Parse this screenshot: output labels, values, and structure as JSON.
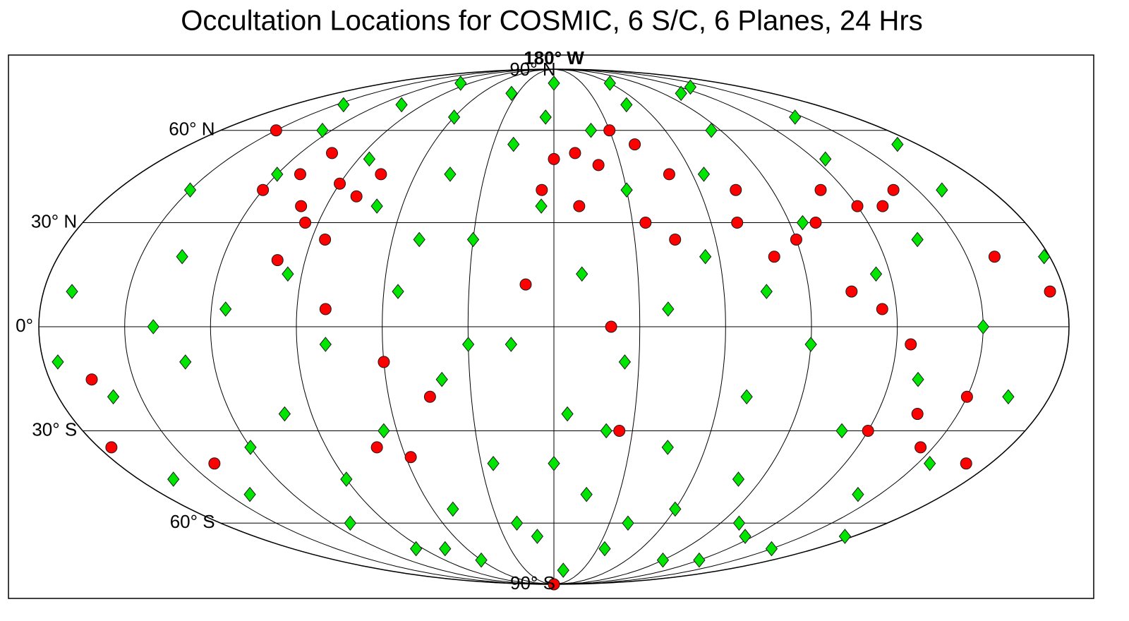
{
  "title": "Occultation Locations for COSMIC, 6 S/C, 6 Planes, 24 Hrs",
  "map": {
    "projection": "mollweide",
    "central_meridian": 0,
    "parallels": [
      {
        "lat": 60,
        "label": "60° N"
      },
      {
        "lat": 30,
        "label": "30° N"
      },
      {
        "lat": 0,
        "label": "0°"
      },
      {
        "lat": -30,
        "label": "30° S"
      },
      {
        "lat": -60,
        "label": "60° S"
      }
    ],
    "meridians": [
      -180,
      -150,
      -120,
      -90,
      -60,
      -30,
      0,
      30,
      60,
      90,
      120,
      150,
      180
    ],
    "poles": [
      {
        "lat": 90,
        "label": "90° N"
      },
      {
        "lat": -90,
        "label": "90° S"
      }
    ],
    "top_label": "180° W",
    "series": [
      {
        "color": "#ff0000",
        "marker": "circle",
        "points": [
          [
            -120,
            40
          ],
          [
            -110,
            45
          ],
          [
            -100,
            35
          ],
          [
            -90,
            42
          ],
          [
            -80,
            38
          ],
          [
            -75,
            45
          ],
          [
            -95,
            30
          ],
          [
            -105,
            52
          ],
          [
            -85,
            25
          ],
          [
            -100,
            19
          ],
          [
            -80,
            5
          ],
          [
            -60,
            -10
          ],
          [
            -45,
            -20
          ],
          [
            -70,
            -35
          ],
          [
            -58,
            -38
          ],
          [
            -150,
            60
          ],
          [
            -165,
            -15
          ],
          [
            -175,
            -35
          ],
          [
            -140,
            -40
          ],
          [
            0,
            50
          ],
          [
            10,
            52
          ],
          [
            20,
            48
          ],
          [
            -5,
            40
          ],
          [
            30,
            60
          ],
          [
            40,
            55
          ],
          [
            50,
            45
          ],
          [
            35,
            30
          ],
          [
            10,
            35
          ],
          [
            -10,
            12
          ],
          [
            20,
            0
          ],
          [
            45,
            25
          ],
          [
            70,
            30
          ],
          [
            80,
            20
          ],
          [
            75,
            40
          ],
          [
            90,
            25
          ],
          [
            100,
            30
          ],
          [
            110,
            40
          ],
          [
            120,
            35
          ],
          [
            105,
            10
          ],
          [
            115,
            5
          ],
          [
            125,
            -5
          ],
          [
            130,
            35
          ],
          [
            140,
            40
          ],
          [
            135,
            -25
          ],
          [
            145,
            -35
          ],
          [
            120,
            -30
          ],
          [
            150,
            -20
          ],
          [
            170,
            -40
          ],
          [
            175,
            10
          ],
          [
            160,
            20
          ],
          [
            25,
            -30
          ],
          [
            0,
            -90
          ]
        ]
      },
      {
        "color": "#00e600",
        "marker": "diamond",
        "points": [
          [
            -170,
            10
          ],
          [
            -160,
            -20
          ],
          [
            -150,
            40
          ],
          [
            -140,
            -50
          ],
          [
            -135,
            20
          ],
          [
            -130,
            -10
          ],
          [
            -125,
            60
          ],
          [
            -120,
            -35
          ],
          [
            -115,
            5
          ],
          [
            -110,
            -60
          ],
          [
            -105,
            70
          ],
          [
            -100,
            -25
          ],
          [
            -95,
            15
          ],
          [
            -90,
            -45
          ],
          [
            -85,
            50
          ],
          [
            -80,
            -5
          ],
          [
            -75,
            -70
          ],
          [
            -70,
            35
          ],
          [
            -65,
            -30
          ],
          [
            -60,
            65
          ],
          [
            -55,
            10
          ],
          [
            -50,
            -55
          ],
          [
            -45,
            45
          ],
          [
            -40,
            -15
          ],
          [
            -35,
            75
          ],
          [
            -30,
            25
          ],
          [
            -25,
            -40
          ],
          [
            -20,
            55
          ],
          [
            -15,
            -5
          ],
          [
            -10,
            -65
          ],
          [
            -5,
            35
          ],
          [
            0,
            80
          ],
          [
            5,
            -25
          ],
          [
            10,
            15
          ],
          [
            15,
            -50
          ],
          [
            20,
            60
          ],
          [
            25,
            -10
          ],
          [
            30,
            40
          ],
          [
            35,
            -70
          ],
          [
            40,
            5
          ],
          [
            45,
            -35
          ],
          [
            50,
            70
          ],
          [
            55,
            20
          ],
          [
            60,
            -55
          ],
          [
            65,
            45
          ],
          [
            70,
            -20
          ],
          [
            75,
            10
          ],
          [
            80,
            -45
          ],
          [
            85,
            60
          ],
          [
            90,
            -5
          ],
          [
            95,
            30
          ],
          [
            100,
            -60
          ],
          [
            105,
            75
          ],
          [
            110,
            -30
          ],
          [
            115,
            15
          ],
          [
            120,
            -75
          ],
          [
            125,
            50
          ],
          [
            130,
            -15
          ],
          [
            135,
            25
          ],
          [
            140,
            -50
          ],
          [
            145,
            65
          ],
          [
            150,
            0
          ],
          [
            155,
            -40
          ],
          [
            160,
            40
          ],
          [
            165,
            -20
          ],
          [
            170,
            55
          ],
          [
            175,
            -65
          ],
          [
            -165,
            -45
          ],
          [
            -145,
            70
          ],
          [
            -120,
            45
          ],
          [
            -95,
            -70
          ],
          [
            -60,
            -75
          ],
          [
            -20,
            -60
          ],
          [
            10,
            -80
          ],
          [
            60,
            80
          ],
          [
            90,
            -75
          ],
          [
            130,
            78
          ],
          [
            -100,
            80
          ],
          [
            -30,
            -5
          ],
          [
            -140,
            0
          ],
          [
            20,
            -30
          ],
          [
            40,
            -60
          ],
          [
            -50,
            25
          ],
          [
            0,
            -40
          ],
          [
            -5,
            65
          ],
          [
            115,
            -65
          ],
          [
            150,
            -70
          ],
          [
            -175,
            -10
          ],
          [
            178,
            20
          ]
        ]
      }
    ]
  }
}
